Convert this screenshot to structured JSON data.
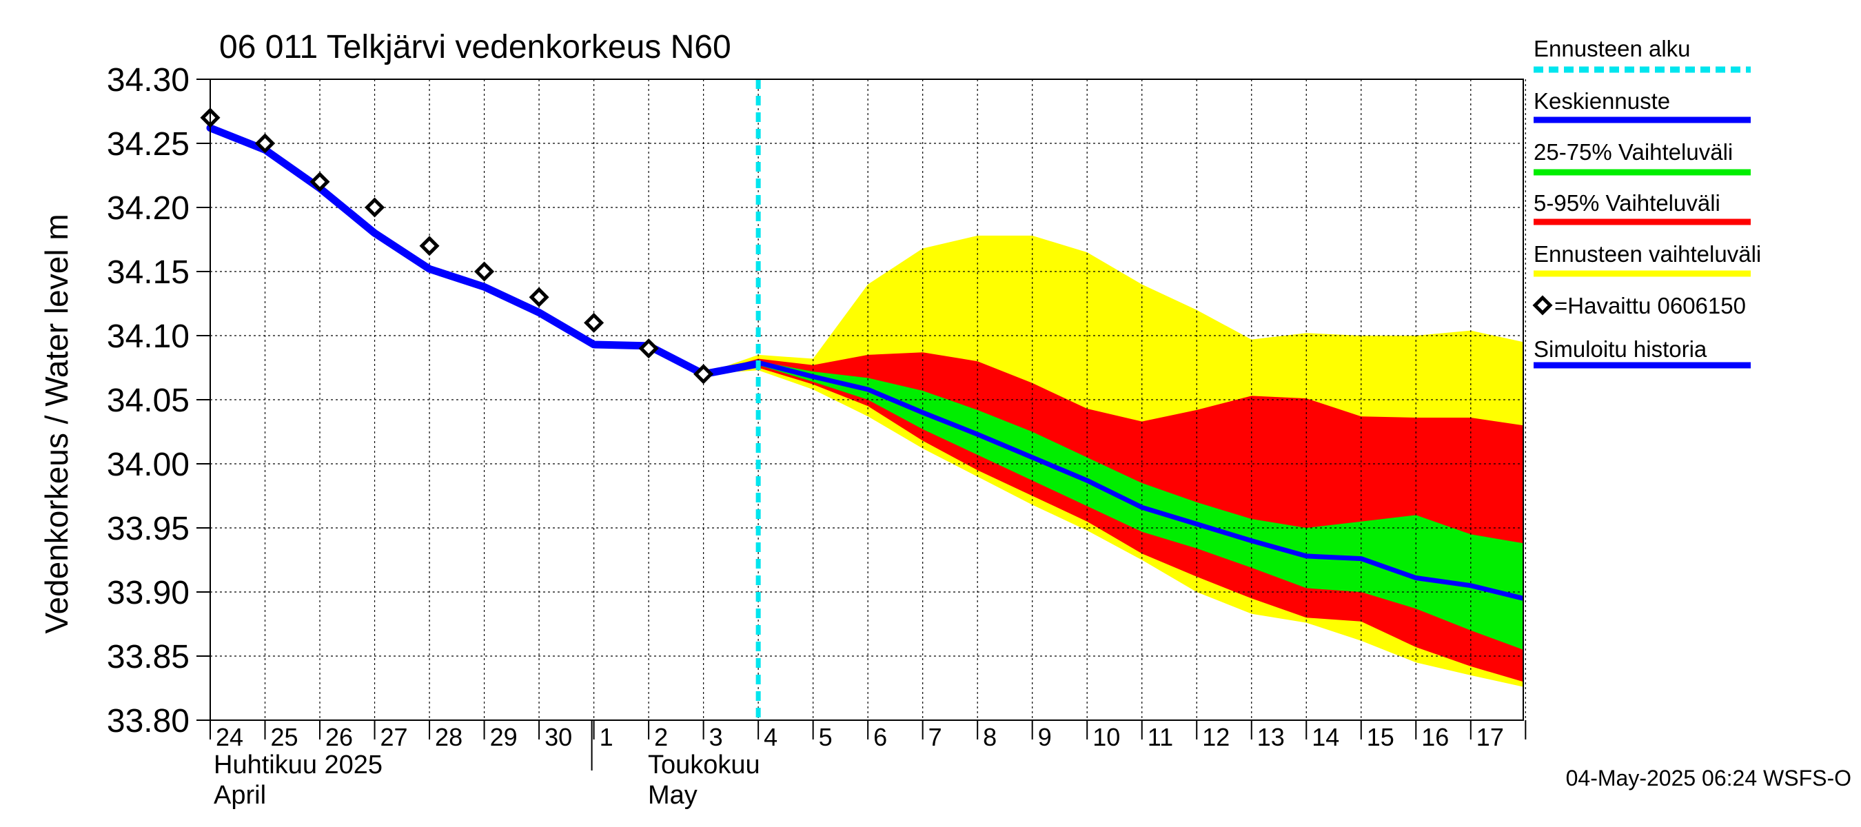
{
  "chart_data": {
    "type": "line",
    "title": "06 011 Telkjärvi vedenkorkeus N60",
    "ylabel": "Vedenkorkeus / Water level   m",
    "ylim": [
      33.8,
      34.3
    ],
    "yticks": [
      "33.80",
      "33.85",
      "33.90",
      "33.95",
      "34.00",
      "34.05",
      "34.10",
      "34.15",
      "34.20",
      "34.25",
      "34.30"
    ],
    "xlim": [
      "2025-04-24",
      "2025-05-17T23:00"
    ],
    "xtick_labels": [
      "24",
      "25",
      "26",
      "27",
      "28",
      "29",
      "30",
      "1",
      "2",
      "3",
      "4",
      "5",
      "6",
      "7",
      "8",
      "9",
      "10",
      "11",
      "12",
      "13",
      "14",
      "15",
      "16",
      "17"
    ],
    "month_labels": {
      "april_fi": "Huhtikuu  2025",
      "april_en": "April",
      "may_fi": "Toukokuu",
      "may_en": "May"
    },
    "forecast_start": "2025-05-04",
    "footer": "04-May-2025 06:24 WSFS-O",
    "grid": true,
    "legend_placement": "right",
    "legend": [
      {
        "label": "Ennusteen alku",
        "color": "#00e5ee",
        "style": "dashed"
      },
      {
        "label": "Keskiennuste",
        "color": "#0000ff",
        "style": "line"
      },
      {
        "label": "25-75% Vaihteluväli",
        "color": "#00ee00",
        "style": "line"
      },
      {
        "label": "5-95% Vaihteluväli",
        "color": "#ff0000",
        "style": "line"
      },
      {
        "label": "Ennusteen vaihteluväli",
        "color": "#ffff00",
        "style": "line"
      },
      {
        "label": "=Havaittu 0606150",
        "color": "#000000",
        "style": "marker"
      },
      {
        "label": "Simuloitu historia",
        "color": "#0000ff",
        "style": "line"
      }
    ],
    "observed": {
      "name": "Havaittu 0606150",
      "x": [
        "2025-04-24",
        "2025-04-25",
        "2025-04-26",
        "2025-04-27",
        "2025-04-28",
        "2025-04-29",
        "2025-04-30",
        "2025-05-01",
        "2025-05-02",
        "2025-05-03"
      ],
      "y": [
        34.27,
        34.25,
        34.22,
        34.2,
        34.17,
        34.15,
        34.13,
        34.11,
        34.09,
        34.07
      ]
    },
    "simulated_history": {
      "name": "Simuloitu historia",
      "x": [
        "2025-04-24",
        "2025-04-25",
        "2025-04-26",
        "2025-04-27",
        "2025-04-28",
        "2025-04-29",
        "2025-04-30",
        "2025-05-01",
        "2025-05-02",
        "2025-05-03",
        "2025-05-04"
      ],
      "y": [
        34.262,
        34.245,
        34.215,
        34.18,
        34.152,
        34.138,
        34.118,
        34.093,
        34.092,
        34.07,
        34.078
      ]
    },
    "forecast_x": [
      "2025-05-03",
      "2025-05-04",
      "2025-05-05",
      "2025-05-06",
      "2025-05-07",
      "2025-05-08",
      "2025-05-09",
      "2025-05-10",
      "2025-05-11",
      "2025-05-12",
      "2025-05-13",
      "2025-05-14",
      "2025-05-15",
      "2025-05-16",
      "2025-05-17",
      "2025-05-17T23:00"
    ],
    "median": [
      34.07,
      34.079,
      34.068,
      34.058,
      34.04,
      34.023,
      34.005,
      33.987,
      33.966,
      33.953,
      33.94,
      33.928,
      33.926,
      33.911,
      33.905,
      33.895
    ],
    "range_25_75": {
      "upper": [
        34.07,
        34.08,
        34.072,
        34.067,
        34.057,
        34.042,
        34.025,
        34.005,
        33.985,
        33.97,
        33.957,
        33.95,
        33.955,
        33.96,
        33.945,
        33.938
      ],
      "lower": [
        34.07,
        34.077,
        34.064,
        34.05,
        34.027,
        34.007,
        33.987,
        33.967,
        33.947,
        33.934,
        33.919,
        33.903,
        33.9,
        33.887,
        33.87,
        33.855
      ]
    },
    "range_5_95": {
      "upper": [
        34.07,
        34.082,
        34.077,
        34.085,
        34.087,
        34.08,
        34.063,
        34.043,
        34.033,
        34.042,
        34.053,
        34.051,
        34.037,
        34.036,
        34.036,
        34.03
      ],
      "lower": [
        34.07,
        34.075,
        34.062,
        34.045,
        34.018,
        33.995,
        33.975,
        33.955,
        33.93,
        33.912,
        33.895,
        33.88,
        33.877,
        33.857,
        33.842,
        33.83
      ]
    },
    "range_forecast": {
      "upper": [
        34.07,
        34.085,
        34.082,
        34.14,
        34.168,
        34.178,
        34.178,
        34.165,
        34.14,
        34.12,
        34.097,
        34.102,
        34.1,
        34.1,
        34.104,
        34.095
      ],
      "lower": [
        34.07,
        34.073,
        34.058,
        34.037,
        34.012,
        33.99,
        33.968,
        33.948,
        33.925,
        33.9,
        33.883,
        33.876,
        33.862,
        33.845,
        33.835,
        33.826
      ]
    },
    "colors": {
      "median": "#0000ff",
      "simulated": "#0000ff",
      "range_25_75": "#00ee00",
      "range_5_95": "#ff0000",
      "range_forecast": "#ffff00",
      "forecast_start": "#00e5ee",
      "observed": "#000000"
    }
  }
}
